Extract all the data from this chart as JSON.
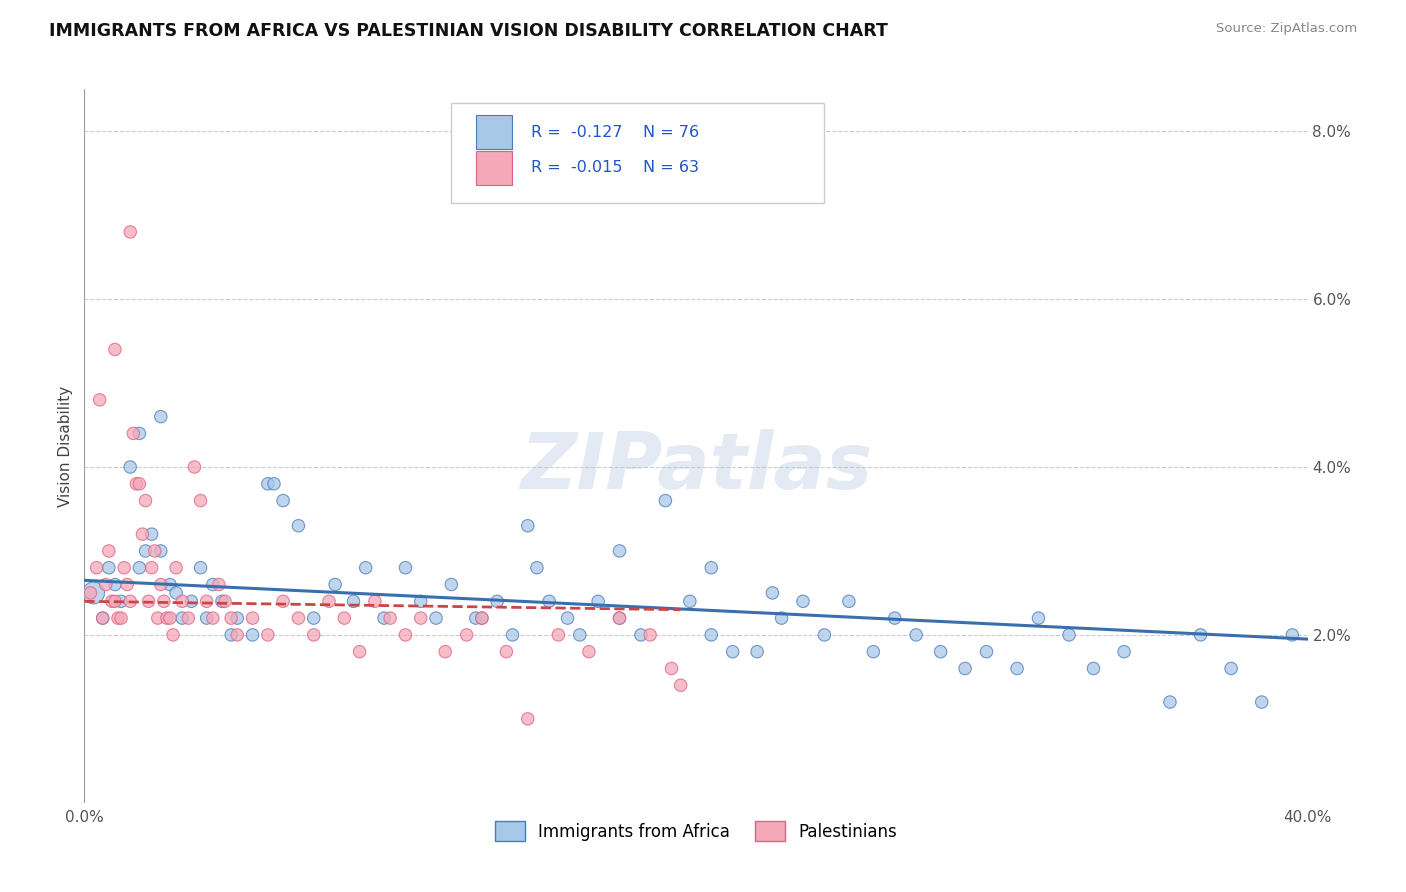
{
  "title": "IMMIGRANTS FROM AFRICA VS PALESTINIAN VISION DISABILITY CORRELATION CHART",
  "source": "Source: ZipAtlas.com",
  "ylabel": "Vision Disability",
  "xlim": [
    0.0,
    0.4
  ],
  "ylim": [
    0.0,
    0.085
  ],
  "ytick_right_labels": [
    "2.0%",
    "4.0%",
    "6.0%",
    "8.0%"
  ],
  "ytick_right_vals": [
    0.02,
    0.04,
    0.06,
    0.08
  ],
  "legend_label1": "Immigrants from Africa",
  "legend_label2": "Palestinians",
  "color_blue_fill": "#a8c8e8",
  "color_pink_fill": "#f4a8b8",
  "color_blue_edge": "#4a7ab8",
  "color_pink_edge": "#e06080",
  "color_blue_line": "#3a6fad",
  "color_pink_line": "#cc4444",
  "R1": -0.127,
  "N1": 76,
  "R2": -0.015,
  "N2": 63,
  "watermark": "ZIPatlas",
  "blue_x": [
    0.003,
    0.006,
    0.008,
    0.01,
    0.012,
    0.015,
    0.018,
    0.02,
    0.022,
    0.025,
    0.028,
    0.03,
    0.032,
    0.035,
    0.038,
    0.04,
    0.042,
    0.045,
    0.048,
    0.05,
    0.055,
    0.06,
    0.065,
    0.07,
    0.075,
    0.082,
    0.088,
    0.092,
    0.098,
    0.105,
    0.11,
    0.115,
    0.12,
    0.128,
    0.135,
    0.14,
    0.148,
    0.152,
    0.158,
    0.162,
    0.168,
    0.175,
    0.182,
    0.19,
    0.198,
    0.205,
    0.212,
    0.22,
    0.228,
    0.235,
    0.242,
    0.25,
    0.258,
    0.265,
    0.272,
    0.28,
    0.288,
    0.295,
    0.305,
    0.312,
    0.322,
    0.33,
    0.34,
    0.355,
    0.365,
    0.375,
    0.385,
    0.395,
    0.018,
    0.025,
    0.062,
    0.13,
    0.145,
    0.175,
    0.205,
    0.225
  ],
  "blue_y": [
    0.025,
    0.022,
    0.028,
    0.026,
    0.024,
    0.04,
    0.028,
    0.03,
    0.032,
    0.03,
    0.026,
    0.025,
    0.022,
    0.024,
    0.028,
    0.022,
    0.026,
    0.024,
    0.02,
    0.022,
    0.02,
    0.038,
    0.036,
    0.033,
    0.022,
    0.026,
    0.024,
    0.028,
    0.022,
    0.028,
    0.024,
    0.022,
    0.026,
    0.022,
    0.024,
    0.02,
    0.028,
    0.024,
    0.022,
    0.02,
    0.024,
    0.022,
    0.02,
    0.036,
    0.024,
    0.02,
    0.018,
    0.018,
    0.022,
    0.024,
    0.02,
    0.024,
    0.018,
    0.022,
    0.02,
    0.018,
    0.016,
    0.018,
    0.016,
    0.022,
    0.02,
    0.016,
    0.018,
    0.012,
    0.02,
    0.016,
    0.012,
    0.02,
    0.044,
    0.046,
    0.038,
    0.022,
    0.033,
    0.03,
    0.028,
    0.025
  ],
  "blue_sizes": [
    250,
    80,
    80,
    80,
    80,
    80,
    80,
    80,
    80,
    80,
    80,
    80,
    80,
    80,
    80,
    80,
    80,
    80,
    80,
    80,
    80,
    80,
    80,
    80,
    80,
    80,
    80,
    80,
    80,
    80,
    80,
    80,
    80,
    80,
    80,
    80,
    80,
    80,
    80,
    80,
    80,
    80,
    80,
    80,
    80,
    80,
    80,
    80,
    80,
    80,
    80,
    80,
    80,
    80,
    80,
    80,
    80,
    80,
    80,
    80,
    80,
    80,
    80,
    80,
    80,
    80,
    80,
    80,
    80,
    80,
    80,
    80,
    80,
    80,
    80,
    80
  ],
  "pink_x": [
    0.002,
    0.004,
    0.006,
    0.007,
    0.008,
    0.009,
    0.01,
    0.011,
    0.012,
    0.013,
    0.014,
    0.015,
    0.016,
    0.017,
    0.018,
    0.019,
    0.02,
    0.021,
    0.022,
    0.023,
    0.024,
    0.025,
    0.026,
    0.027,
    0.028,
    0.029,
    0.03,
    0.032,
    0.034,
    0.036,
    0.038,
    0.04,
    0.042,
    0.044,
    0.046,
    0.048,
    0.05,
    0.055,
    0.06,
    0.065,
    0.07,
    0.075,
    0.08,
    0.085,
    0.09,
    0.095,
    0.1,
    0.105,
    0.11,
    0.118,
    0.125,
    0.13,
    0.138,
    0.145,
    0.155,
    0.165,
    0.175,
    0.185,
    0.192,
    0.005,
    0.01,
    0.015,
    0.195
  ],
  "pink_y": [
    0.025,
    0.028,
    0.022,
    0.026,
    0.03,
    0.024,
    0.024,
    0.022,
    0.022,
    0.028,
    0.026,
    0.024,
    0.044,
    0.038,
    0.038,
    0.032,
    0.036,
    0.024,
    0.028,
    0.03,
    0.022,
    0.026,
    0.024,
    0.022,
    0.022,
    0.02,
    0.028,
    0.024,
    0.022,
    0.04,
    0.036,
    0.024,
    0.022,
    0.026,
    0.024,
    0.022,
    0.02,
    0.022,
    0.02,
    0.024,
    0.022,
    0.02,
    0.024,
    0.022,
    0.018,
    0.024,
    0.022,
    0.02,
    0.022,
    0.018,
    0.02,
    0.022,
    0.018,
    0.01,
    0.02,
    0.018,
    0.022,
    0.02,
    0.016,
    0.048,
    0.054,
    0.068,
    0.014
  ],
  "pink_sizes": [
    80,
    80,
    80,
    80,
    80,
    80,
    80,
    80,
    80,
    80,
    80,
    80,
    80,
    80,
    80,
    80,
    80,
    80,
    80,
    80,
    80,
    80,
    80,
    80,
    80,
    80,
    80,
    80,
    80,
    80,
    80,
    80,
    80,
    80,
    80,
    80,
    80,
    80,
    80,
    80,
    80,
    80,
    80,
    80,
    80,
    80,
    80,
    80,
    80,
    80,
    80,
    80,
    80,
    80,
    80,
    80,
    80,
    80,
    80,
    80,
    80,
    80,
    80
  ],
  "blue_line_x": [
    0.0,
    0.4
  ],
  "blue_line_y": [
    0.0265,
    0.0195
  ],
  "pink_line_x": [
    0.0,
    0.195
  ],
  "pink_line_y": [
    0.024,
    0.023
  ]
}
